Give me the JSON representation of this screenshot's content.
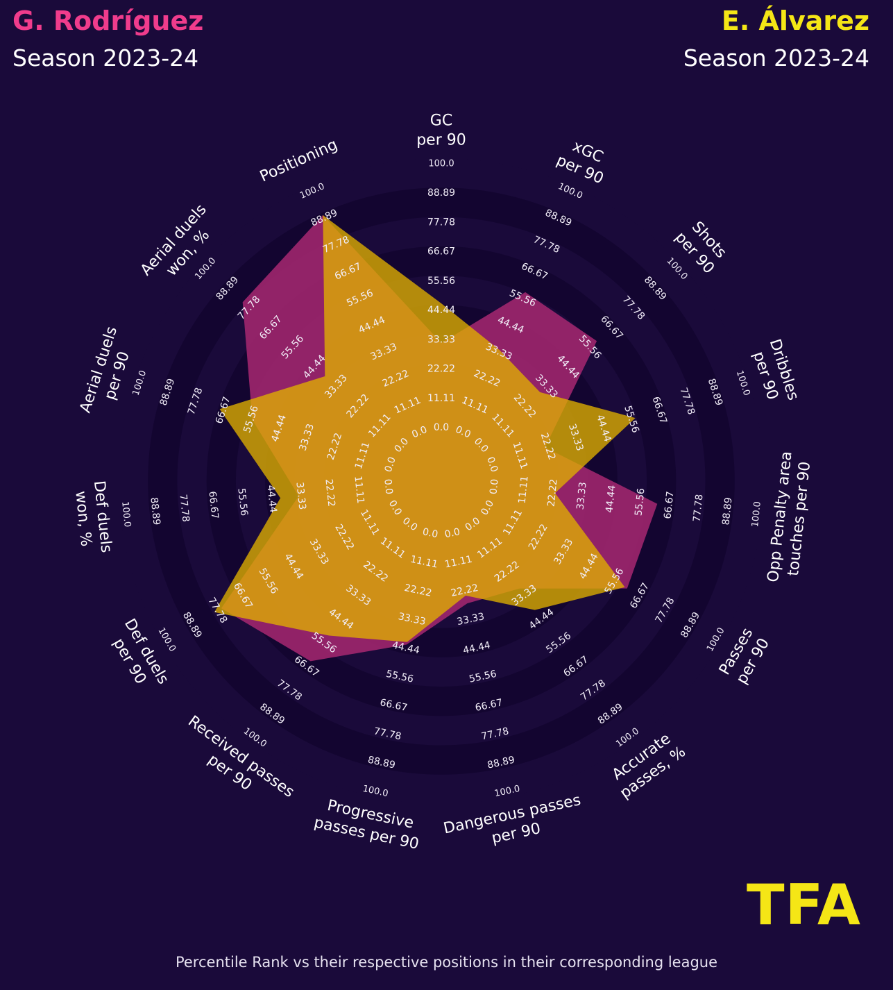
{
  "players": {
    "left": {
      "name": "G. Rodríguez",
      "season": "Season 2023-24",
      "color": "#f03c8c"
    },
    "right": {
      "name": "E. Álvarez",
      "season": "Season 2023-24",
      "color": "#f5e616"
    }
  },
  "chart_data": {
    "type": "radar",
    "categories": [
      "GC\nper 90",
      "xGC\nper 90",
      "Shots\nper 90",
      "Dribbles\nper 90",
      "Opp Penalty area\ntouches per 90",
      "Passes\nper 90",
      "Accurate\npasses, %",
      "Dangerous passes\nper 90",
      "Progressive\npasses per 90",
      "Received passes\nper 90",
      "Def duels\nper 90",
      "Def duels\nwon, %",
      "Aerial duels\nper 90",
      "Aerial duels\nwon, %",
      "Positioning"
    ],
    "rlim": [
      0,
      100
    ],
    "ring_labels": [
      "0.0",
      "11.11",
      "22.22",
      "33.33",
      "44.44",
      "55.56",
      "66.67",
      "77.78",
      "88.89",
      "100.0"
    ],
    "series": [
      {
        "name": "G. Rodríguez",
        "color": "#a0266e",
        "values": [
          30,
          56,
          57,
          19,
          60,
          59,
          28,
          25,
          41,
          62,
          74,
          32,
          53,
          79,
          88
        ]
      },
      {
        "name": "E. Álvarez",
        "color": "#e0b000",
        "values": [
          45,
          32,
          28,
          55,
          21,
          58,
          38,
          22,
          40,
          50,
          77,
          39,
          66,
          37,
          88
        ]
      }
    ]
  },
  "logo_text": "TFA",
  "footer": "Percentile Rank vs their respective positions in their corresponding league"
}
